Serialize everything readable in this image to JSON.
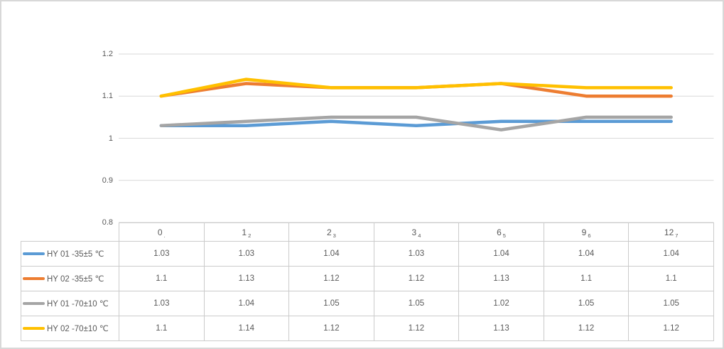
{
  "chart_data": {
    "type": "line",
    "title": "",
    "xlabel": "",
    "ylabel": "",
    "categories": [
      "0",
      "1",
      "2",
      "3",
      "6",
      "9",
      "12"
    ],
    "category_subscripts": [
      ".",
      "2",
      "3",
      "4",
      "5",
      "6",
      "7"
    ],
    "series": [
      {
        "name": "HY 01 -35±5 ℃",
        "color": "#5B9BD5",
        "values": [
          "1.03",
          "1.03",
          "1.04",
          "1.03",
          "1.04",
          "1.04",
          "1.04"
        ]
      },
      {
        "name": "HY 02 -35±5 ℃",
        "color": "#ED7D31",
        "values": [
          "1.1",
          "1.13",
          "1.12",
          "1.12",
          "1.13",
          "1.1",
          "1.1"
        ]
      },
      {
        "name": "HY 01 -70±10 ℃",
        "color": "#A5A5A5",
        "values": [
          "1.03",
          "1.04",
          "1.05",
          "1.05",
          "1.02",
          "1.05",
          "1.05"
        ]
      },
      {
        "name": "HY 02 -70±10 ℃",
        "color": "#FFC000",
        "values": [
          "1.1",
          "1.14",
          "1.12",
          "1.12",
          "1.13",
          "1.12",
          "1.12"
        ]
      }
    ],
    "ylim": [
      0.8,
      1.2
    ],
    "yticks": [
      "1.2",
      "1.1",
      "1",
      "0.9",
      "0.8"
    ],
    "grid": true,
    "legend_position": "table-rows-left"
  },
  "colors": {
    "background": "#FFFFFF",
    "frame_border": "#D8D8D8",
    "gridline": "#D9D9D9",
    "table_border": "#CBCBCB",
    "text": "#595959"
  }
}
